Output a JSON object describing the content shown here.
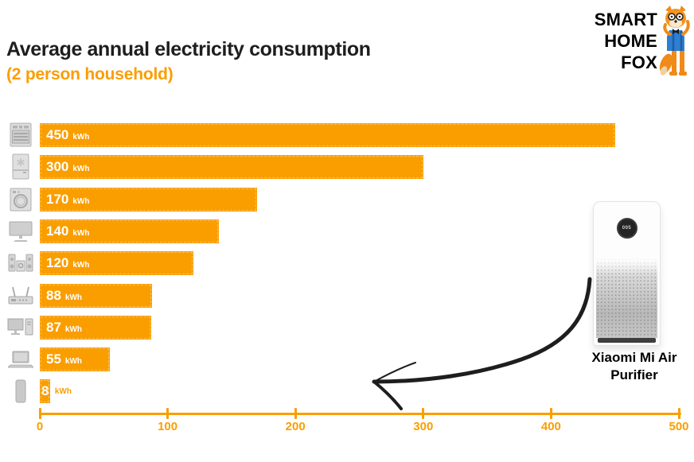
{
  "header": {
    "title": "Average annual electricity consumption",
    "subtitle": "(2 person household)"
  },
  "logo": {
    "line1": "SMART",
    "line2": "HOME",
    "line3": "FOX",
    "mascot": "fox-mascot-icon"
  },
  "colors": {
    "accent_orange": "#FA9E00",
    "title_black": "#1E1E1E",
    "bar_label_white": "#FFFFFF",
    "appliance_icon_grey": "#C9C9C9",
    "arrow_black": "#1E1E1E"
  },
  "chart_data": {
    "type": "bar",
    "orientation": "horizontal",
    "title": "Average annual electricity consumption (2 person household)",
    "unit": "kWh",
    "xlim": [
      0,
      500
    ],
    "x_ticks": [
      0,
      100,
      200,
      300,
      400,
      500
    ],
    "grid": false,
    "legend": false,
    "categories": [
      "oven",
      "fridge-freezer",
      "washing-machine",
      "tv",
      "stereo-system",
      "wifi-router",
      "desktop-computer",
      "laptop",
      "air-purifier"
    ],
    "values": [
      450,
      300,
      170,
      140,
      120,
      88,
      87,
      55,
      8
    ],
    "value_labels": [
      "450 kWh",
      "300 kWh",
      "170 kWh",
      "140 kWh",
      "120 kWh",
      "88 kWh",
      "87 kWh",
      "55 kWh",
      "8 kWh"
    ],
    "icons": [
      "oven-icon",
      "fridge-freezer-icon",
      "washing-machine-icon",
      "tv-icon",
      "stereo-system-icon",
      "wifi-router-icon",
      "desktop-computer-icon",
      "laptop-icon",
      "air-purifier-icon"
    ],
    "bar_color": "#FA9E00",
    "axis_color": "#FA9E00"
  },
  "annotation": {
    "product_label": "Xiaomi Mi Air Purifier",
    "display_value": "005"
  }
}
